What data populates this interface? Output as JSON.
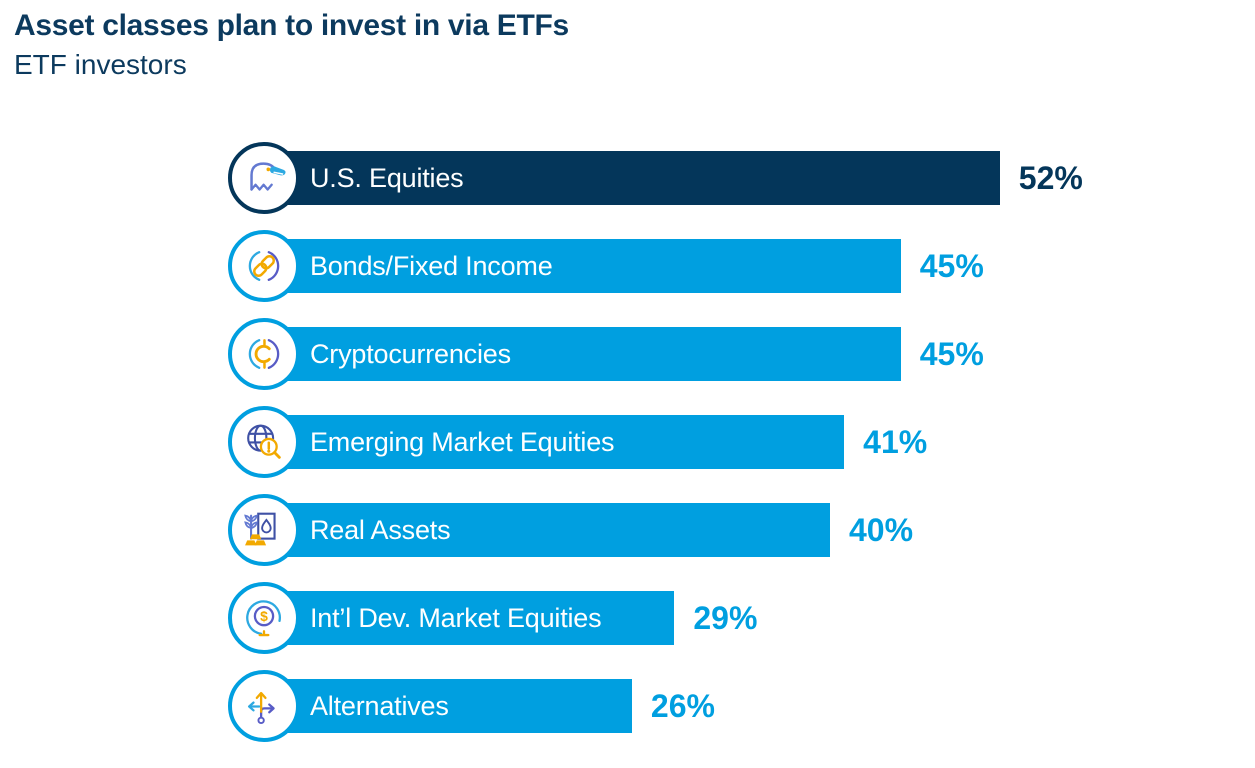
{
  "header": {
    "title": "Asset classes plan to invest in via ETFs",
    "subtitle": "ETF investors"
  },
  "colors": {
    "navy": "#04365A",
    "light_blue": "#009FE0",
    "orange": "#F2A900",
    "periwinkle": "#6379D1",
    "purple": "#585CC6",
    "globe_navy": "#3F51A5",
    "white": "#FFFFFF"
  },
  "chart_data": {
    "type": "bar",
    "orientation": "horizontal",
    "title": "Asset classes plan to invest in via ETFs",
    "subtitle": "ETF investors",
    "categories": [
      "U.S. Equities",
      "Bonds/Fixed Income",
      "Cryptocurrencies",
      "Emerging Market Equities",
      "Real Assets",
      "Int’l Dev. Market Equities",
      "Alternatives"
    ],
    "values": [
      52,
      45,
      45,
      41,
      40,
      29,
      26
    ],
    "unit": "percent",
    "value_labels": [
      "52%",
      "45%",
      "45%",
      "41%",
      "40%",
      "29%",
      "26%"
    ],
    "xlim": [
      0,
      55
    ],
    "grid": false,
    "legend": false,
    "axis_labels_shown": false,
    "bar_colors": [
      "#04365A",
      "#009FE0",
      "#009FE0",
      "#009FE0",
      "#009FE0",
      "#009FE0",
      "#009FE0"
    ]
  },
  "rows": [
    {
      "label": "U.S. Equities",
      "value": 52,
      "pct": "52%",
      "icon": "eagle",
      "bar_color": "#04365A",
      "pct_color": "#04365A",
      "ring_color": "#04365A"
    },
    {
      "label": "Bonds/Fixed Income",
      "value": 45,
      "pct": "45%",
      "icon": "chain-link",
      "bar_color": "#009FE0",
      "pct_color": "#009FE0",
      "ring_color": "#009FE0"
    },
    {
      "label": "Cryptocurrencies",
      "value": 45,
      "pct": "45%",
      "icon": "crypto-cent",
      "bar_color": "#009FE0",
      "pct_color": "#009FE0",
      "ring_color": "#009FE0"
    },
    {
      "label": "Emerging Market Equities",
      "value": 41,
      "pct": "41%",
      "icon": "globe-magnifier",
      "bar_color": "#009FE0",
      "pct_color": "#009FE0",
      "ring_color": "#009FE0"
    },
    {
      "label": "Real Assets",
      "value": 40,
      "pct": "40%",
      "icon": "wheat-water-gold",
      "bar_color": "#009FE0",
      "pct_color": "#009FE0",
      "ring_color": "#009FE0"
    },
    {
      "label": "Int’l Dev. Market Equities",
      "value": 29,
      "pct": "29%",
      "icon": "desk-globe-dollar",
      "bar_color": "#009FE0",
      "pct_color": "#009FE0",
      "ring_color": "#009FE0"
    },
    {
      "label": "Alternatives",
      "value": 26,
      "pct": "26%",
      "icon": "branching-arrows",
      "bar_color": "#009FE0",
      "pct_color": "#009FE0",
      "ring_color": "#009FE0"
    }
  ]
}
